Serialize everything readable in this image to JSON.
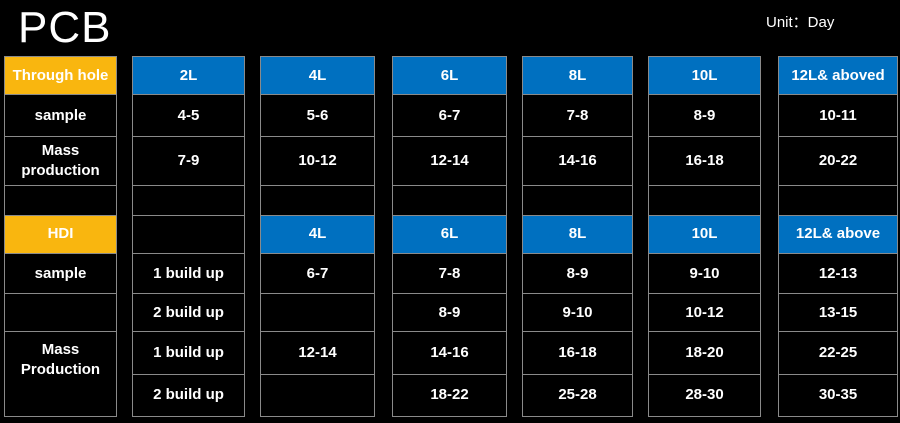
{
  "title": "PCB",
  "unit": "Unit：Day",
  "through_hole": {
    "label": "Through hole",
    "headers": [
      "2L",
      "4L",
      "6L",
      "8L",
      "10L",
      "12L& aboved"
    ],
    "sample": {
      "label": "sample",
      "values": [
        "4-5",
        "5-6",
        "6-7",
        "7-8",
        "8-9",
        "10-11"
      ]
    },
    "mass": {
      "label": "Mass production",
      "values": [
        "7-9",
        "10-12",
        "12-14",
        "14-16",
        "16-18",
        "20-22"
      ]
    }
  },
  "hdi": {
    "label": "HDI",
    "headers": [
      "4L",
      "6L",
      "8L",
      "10L",
      "12L& above"
    ],
    "sample_label": "sample",
    "mass_label": "Mass Production",
    "rows": [
      {
        "build": "1 build up",
        "values": [
          "6-7",
          "7-8",
          "8-9",
          "9-10",
          "12-13"
        ]
      },
      {
        "build": "2 build up",
        "values": [
          "",
          "8-9",
          "9-10",
          "10-12",
          "13-15"
        ]
      },
      {
        "build": "1 build up",
        "values": [
          "12-14",
          "14-16",
          "16-18",
          "18-20",
          "22-25"
        ]
      },
      {
        "build": "2 build up",
        "values": [
          "",
          "18-22",
          "25-28",
          "28-30",
          "30-35"
        ]
      }
    ]
  },
  "colors": {
    "yellow": "#f9b60f",
    "blue": "#0070c0",
    "background": "#000000",
    "border": "#8a8a8a"
  }
}
